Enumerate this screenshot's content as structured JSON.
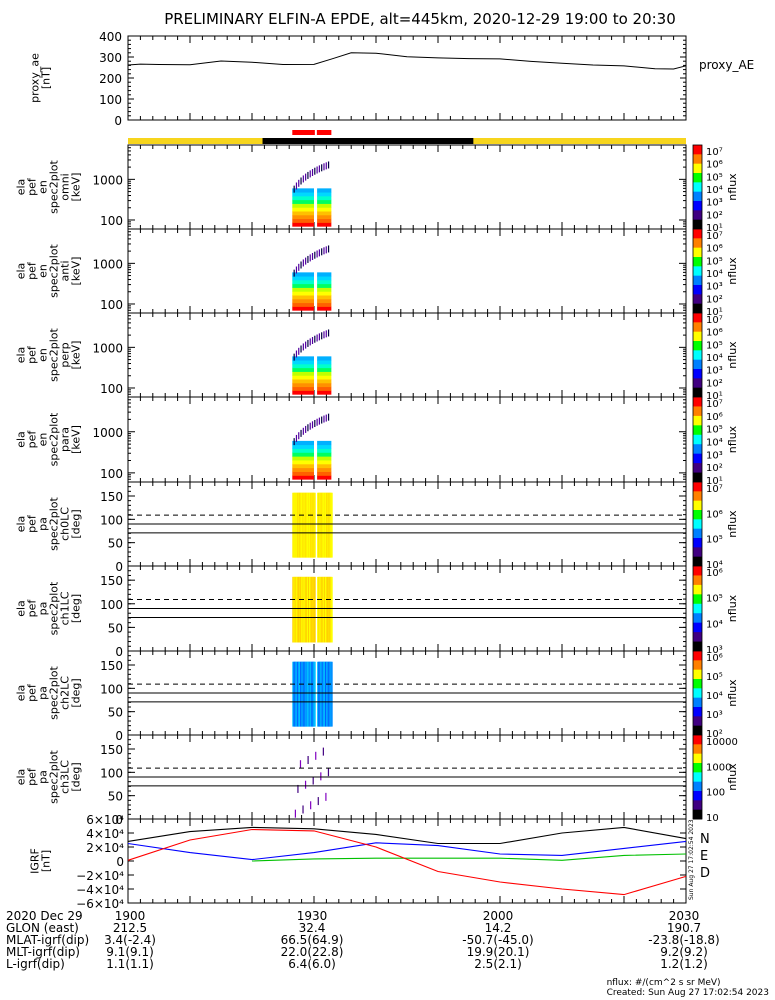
{
  "title": "PRELIMINARY ELFIN-A EPDE, alt=445km, 2020-12-29 19:00 to 20:30",
  "colors": {
    "sunlight_bar": "#f7d51d",
    "eclipse_bar": "#000000",
    "science_bar": "#ff0000",
    "N": "#0000ff",
    "E": "#00c000",
    "D": "#ff0000"
  },
  "chart_data": [
    {
      "type": "line",
      "panel": "proxy_ae",
      "ylabel": [
        "proxy_ae",
        "[nT]"
      ],
      "series_label": "proxy_AE",
      "yticks": [
        "400",
        "300",
        "200",
        "100",
        "0"
      ],
      "ylim": [
        0,
        400
      ],
      "x_minutes": [
        0,
        2,
        5,
        10,
        15,
        20,
        25,
        30,
        33,
        36,
        40,
        45,
        50,
        55,
        60,
        65,
        70,
        75,
        80,
        85,
        88,
        90
      ],
      "values": [
        262,
        266,
        264,
        263,
        281,
        275,
        264,
        265,
        292,
        320,
        318,
        301,
        296,
        292,
        291,
        279,
        270,
        262,
        258,
        244,
        243,
        258
      ]
    },
    {
      "type": "heatmap",
      "panel": "omni",
      "ylabel": [
        "ela",
        "pef",
        "en",
        "spec2plot",
        "omni",
        "[keV]"
      ],
      "yticks": [
        "1000",
        "100"
      ],
      "colorbar": {
        "label": "nflux",
        "ticks": [
          "10^7",
          "10^6",
          "10^5",
          "10^4",
          "10^3",
          "10^2",
          "10^1"
        ]
      }
    },
    {
      "type": "heatmap",
      "panel": "anti",
      "ylabel": [
        "ela",
        "pef",
        "en",
        "spec2plot",
        "anti",
        "[keV]"
      ],
      "yticks": [
        "1000",
        "100"
      ],
      "colorbar": {
        "label": "nflux",
        "ticks": [
          "10^7",
          "10^6",
          "10^5",
          "10^4",
          "10^3",
          "10^2",
          "10^1"
        ]
      }
    },
    {
      "type": "heatmap",
      "panel": "perp",
      "ylabel": [
        "ela",
        "pef",
        "en",
        "spec2plot",
        "perp",
        "[keV]"
      ],
      "yticks": [
        "1000",
        "100"
      ],
      "colorbar": {
        "label": "nflux",
        "ticks": [
          "10^7",
          "10^6",
          "10^5",
          "10^4",
          "10^3",
          "10^2",
          "10^1"
        ]
      }
    },
    {
      "type": "heatmap",
      "panel": "para",
      "ylabel": [
        "ela",
        "pef",
        "en",
        "spec2plot",
        "para",
        "[keV]"
      ],
      "yticks": [
        "1000",
        "100"
      ],
      "colorbar": {
        "label": "nflux",
        "ticks": [
          "10^7",
          "10^6",
          "10^5",
          "10^4",
          "10^3",
          "10^2",
          "10^1"
        ]
      }
    },
    {
      "type": "heatmap",
      "panel": "ch0LC",
      "ylabel": [
        "ela",
        "pef",
        "pa",
        "spec2plot",
        "ch0LC",
        "[deg]"
      ],
      "yticks": [
        "150",
        "100",
        "50",
        "0"
      ],
      "ylim": [
        0,
        180
      ],
      "colorbar": {
        "label": "nflux",
        "ticks": [
          "10^7",
          "10^6",
          "10^5",
          "10^4"
        ]
      }
    },
    {
      "type": "heatmap",
      "panel": "ch1LC",
      "ylabel": [
        "ela",
        "pef",
        "pa",
        "spec2plot",
        "ch1LC",
        "[deg]"
      ],
      "yticks": [
        "150",
        "100",
        "50",
        "0"
      ],
      "ylim": [
        0,
        180
      ],
      "colorbar": {
        "label": "nflux",
        "ticks": [
          "10^6",
          "10^5",
          "10^4",
          "10^3"
        ]
      }
    },
    {
      "type": "heatmap",
      "panel": "ch2LC",
      "ylabel": [
        "ela",
        "pef",
        "pa",
        "spec2plot",
        "ch2LC",
        "[deg]"
      ],
      "yticks": [
        "150",
        "100",
        "50",
        "0"
      ],
      "ylim": [
        0,
        180
      ],
      "colorbar": {
        "label": "nflux",
        "ticks": [
          "10^6",
          "10^5",
          "10^4",
          "10^3",
          "10^2"
        ]
      }
    },
    {
      "type": "heatmap",
      "panel": "ch3LC",
      "ylabel": [
        "ela",
        "pef",
        "pa",
        "spec2plot",
        "ch3LC",
        "[deg]"
      ],
      "yticks": [
        "150",
        "100",
        "50",
        "0"
      ],
      "ylim": [
        0,
        180
      ],
      "colorbar": {
        "label": "nflux",
        "ticks": [
          "10000",
          "1000",
          "100",
          "10"
        ]
      }
    },
    {
      "type": "line",
      "panel": "igrf",
      "ylabel": [
        "IGRF",
        "[nT]"
      ],
      "yticks": [
        "6×10⁴",
        "4×10⁴",
        "2×10⁴",
        "0",
        "−2×10⁴",
        "−4×10⁴",
        "−6×10⁴"
      ],
      "ylim": [
        -60000,
        60000
      ],
      "x_minutes": [
        0,
        10,
        20,
        30,
        40,
        50,
        60,
        70,
        80,
        90
      ],
      "series": [
        {
          "name": "N",
          "values": [
            25000,
            12000,
            2000,
            12000,
            26000,
            22000,
            10000,
            8000,
            18000,
            28000
          ]
        },
        {
          "name": "E",
          "values": [
            null,
            null,
            0,
            3000,
            4000,
            4000,
            4000,
            1000,
            8000,
            10000
          ]
        },
        {
          "name": "D",
          "values": [
            1000,
            30000,
            45000,
            43000,
            20000,
            -15000,
            -30000,
            -40000,
            -48000,
            -22000
          ]
        },
        {
          "name": "total",
          "values": [
            28000,
            42000,
            48000,
            46000,
            38000,
            25000,
            25000,
            40000,
            48000,
            32000
          ]
        }
      ],
      "legend": [
        "N",
        "E",
        "D"
      ],
      "stamp": "Sun Aug 27 17:02:54 2023"
    }
  ],
  "xticks": [
    "1900",
    "1930",
    "2000",
    "2030"
  ],
  "footer": {
    "rows": [
      {
        "label": "2020 Dec 29",
        "values": [
          "1900",
          "1930",
          "2000",
          "2030"
        ]
      },
      {
        "label": "GLON (east)",
        "values": [
          "212.5",
          "32.4",
          "14.2",
          "190.7"
        ]
      },
      {
        "label": "MLAT-igrf(dip)",
        "values": [
          "3.4(-2.4)",
          "66.5(64.9)",
          "-50.7(-45.0)",
          "-23.8(-18.8)"
        ]
      },
      {
        "label": "MLT-igrf(dip)",
        "values": [
          "9.1(9.1)",
          "22.0(22.8)",
          "19.9(20.1)",
          "9.2(9.2)"
        ]
      },
      {
        "label": "L-igrf(dip)",
        "values": [
          "1.1(1.1)",
          "6.4(6.0)",
          "2.5(2.1)",
          "1.2(1.2)"
        ]
      }
    ],
    "units": "nflux: #/(cm^2 s sr MeV)",
    "created": "Created: Sun Aug 27 17:02:54 2023"
  }
}
